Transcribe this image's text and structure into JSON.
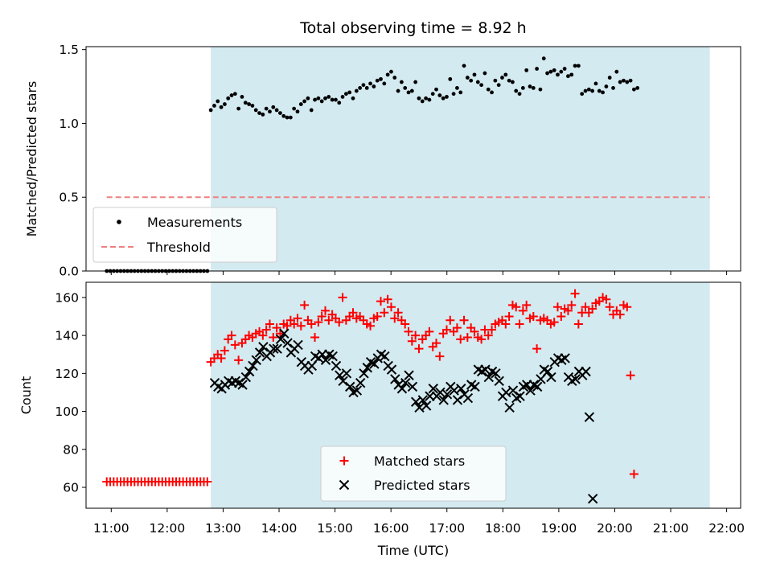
{
  "chart_data": [
    {
      "type": "scatter",
      "title": "Total observing time = 8.92 h",
      "ylabel": "Matched/Predicted stars",
      "xlabel": "",
      "ylim": [
        0,
        1.52
      ],
      "yticks": [
        0.0,
        0.5,
        1.0,
        1.5
      ],
      "ytick_labels": [
        "0.0",
        "0.5",
        "1.0",
        "1.5"
      ],
      "xlim_hours": [
        10.55,
        22.25
      ],
      "x_units": "hours UTC",
      "observing_window_hours": [
        12.78,
        21.7
      ],
      "observing_window_color": "#d3eaf0",
      "grid": false,
      "legend_placement": "lower left",
      "legend": [
        "Measurements",
        "Threshold"
      ],
      "series": [
        {
          "name": "Measurements",
          "kind": "points",
          "color": "#000000",
          "x_start": 10.92,
          "x_step": 0.062,
          "values": [
            0,
            0,
            0,
            0,
            0,
            0,
            0,
            0,
            0,
            0,
            0,
            0,
            0,
            0,
            0,
            0,
            0,
            0,
            0,
            0,
            0,
            0,
            0,
            0,
            0,
            0,
            0,
            0,
            0,
            0,
            1.09,
            1.12,
            1.15,
            1.11,
            1.13,
            1.17,
            1.19,
            1.2,
            1.1,
            1.18,
            1.14,
            1.13,
            1.12,
            1.09,
            1.07,
            1.06,
            1.1,
            1.08,
            1.11,
            1.09,
            1.07,
            1.05,
            1.04,
            1.04,
            1.1,
            1.08,
            1.13,
            1.15,
            1.17,
            1.09,
            1.16,
            1.17,
            1.15,
            1.17,
            1.18,
            1.16,
            1.16,
            1.14,
            1.18,
            1.2,
            1.21,
            1.17,
            1.22,
            1.24,
            1.26,
            1.24,
            1.27,
            1.25,
            1.29,
            1.3,
            1.27,
            1.33,
            1.35,
            1.31,
            1.22,
            1.28,
            1.24,
            1.21,
            1.22,
            1.28,
            1.17,
            1.15,
            1.17,
            1.16,
            1.2,
            1.23,
            1.19,
            1.17,
            1.18,
            1.3,
            1.2,
            1.24,
            1.21,
            1.39,
            1.31,
            1.29,
            1.33,
            1.28,
            1.26,
            1.34,
            1.23,
            1.21,
            1.29,
            1.26,
            1.31,
            1.33,
            1.29,
            1.28,
            1.22,
            1.2,
            1.24,
            1.36,
            1.25,
            1.24,
            1.37,
            1.23,
            1.44,
            1.34,
            1.35,
            1.36,
            1.33,
            1.35,
            1.37,
            1.32,
            1.33,
            1.39,
            1.39,
            1.2,
            1.22,
            1.23,
            1.22,
            1.27,
            1.22,
            1.21,
            1.25,
            1.31,
            1.24,
            1.35,
            1.28,
            1.29,
            1.28,
            1.29,
            1.23,
            1.24
          ]
        },
        {
          "name": "Threshold",
          "kind": "dashed-line",
          "color": "#f08080",
          "x": [
            10.92,
            21.7
          ],
          "values": [
            0.5,
            0.5
          ]
        }
      ]
    },
    {
      "type": "scatter",
      "title": "",
      "ylabel": "Count",
      "xlabel": "Time (UTC)",
      "ylim": [
        49,
        168
      ],
      "yticks": [
        60,
        80,
        100,
        120,
        140,
        160
      ],
      "ytick_labels": [
        "60",
        "80",
        "100",
        "120",
        "140",
        "160"
      ],
      "xlim_hours": [
        10.55,
        22.25
      ],
      "x_units": "hours UTC",
      "xticks_hours": [
        11,
        12,
        13,
        14,
        15,
        16,
        17,
        18,
        19,
        20,
        21,
        22
      ],
      "xtick_labels": [
        "11:00",
        "12:00",
        "13:00",
        "14:00",
        "15:00",
        "16:00",
        "17:00",
        "18:00",
        "19:00",
        "20:00",
        "21:00",
        "22:00"
      ],
      "observing_window_hours": [
        12.78,
        21.7
      ],
      "observing_window_color": "#d3eaf0",
      "grid": false,
      "legend_placement": "lower center",
      "legend": [
        "Matched stars",
        "Predicted stars"
      ],
      "series": [
        {
          "name": "Matched stars",
          "kind": "plus",
          "color": "#ff0000",
          "x_start": 10.92,
          "x_step": 0.062,
          "values": [
            63,
            63,
            63,
            63,
            63,
            63,
            63,
            63,
            63,
            63,
            63,
            63,
            63,
            63,
            63,
            63,
            63,
            63,
            63,
            63,
            63,
            63,
            63,
            63,
            63,
            63,
            63,
            63,
            63,
            63,
            126,
            128,
            130,
            128,
            132,
            138,
            140,
            135,
            127,
            136,
            138,
            140,
            139,
            141,
            142,
            140,
            143,
            146,
            139,
            144,
            141,
            146,
            145,
            148,
            146,
            149,
            145,
            156,
            148,
            146,
            139,
            147,
            150,
            153,
            148,
            151,
            149,
            147,
            160,
            148,
            150,
            152,
            149,
            150,
            148,
            146,
            145,
            149,
            150,
            158,
            152,
            159,
            155,
            149,
            152,
            148,
            146,
            142,
            137,
            140,
            133,
            138,
            140,
            142,
            134,
            136,
            129,
            141,
            143,
            148,
            142,
            144,
            138,
            148,
            139,
            144,
            142,
            139,
            138,
            143,
            140,
            143,
            146,
            147,
            148,
            146,
            150,
            156,
            155,
            146,
            153,
            156,
            149,
            150,
            133,
            148,
            149,
            148,
            146,
            147,
            155,
            150,
            154,
            153,
            156,
            162,
            146,
            152,
            155,
            152,
            154,
            157,
            158,
            160,
            159,
            155,
            151,
            153,
            151,
            156,
            155,
            119,
            67
          ]
        },
        {
          "name": "Predicted stars",
          "kind": "cross",
          "color": "#000000",
          "x_start": 12.85,
          "x_step": 0.062,
          "values": [
            115,
            113,
            112,
            114,
            116,
            115,
            116,
            115,
            114,
            118,
            121,
            124,
            127,
            131,
            134,
            129,
            131,
            133,
            133,
            138,
            141,
            136,
            131,
            133,
            135,
            126,
            124,
            122,
            124,
            129,
            128,
            130,
            127,
            130,
            129,
            124,
            119,
            116,
            120,
            113,
            110,
            111,
            115,
            120,
            123,
            126,
            125,
            128,
            130,
            129,
            124,
            122,
            117,
            114,
            112,
            115,
            119,
            113,
            105,
            102,
            106,
            103,
            108,
            112,
            108,
            110,
            106,
            109,
            113,
            111,
            106,
            112,
            109,
            107,
            114,
            113,
            122,
            121,
            122,
            118,
            121,
            120,
            116,
            108,
            110,
            102,
            111,
            107,
            108,
            113,
            114,
            111,
            114,
            113,
            117,
            122,
            121,
            118,
            126,
            128,
            127,
            128,
            118,
            116,
            117,
            121,
            119,
            121,
            97,
            54
          ]
        }
      ]
    }
  ]
}
